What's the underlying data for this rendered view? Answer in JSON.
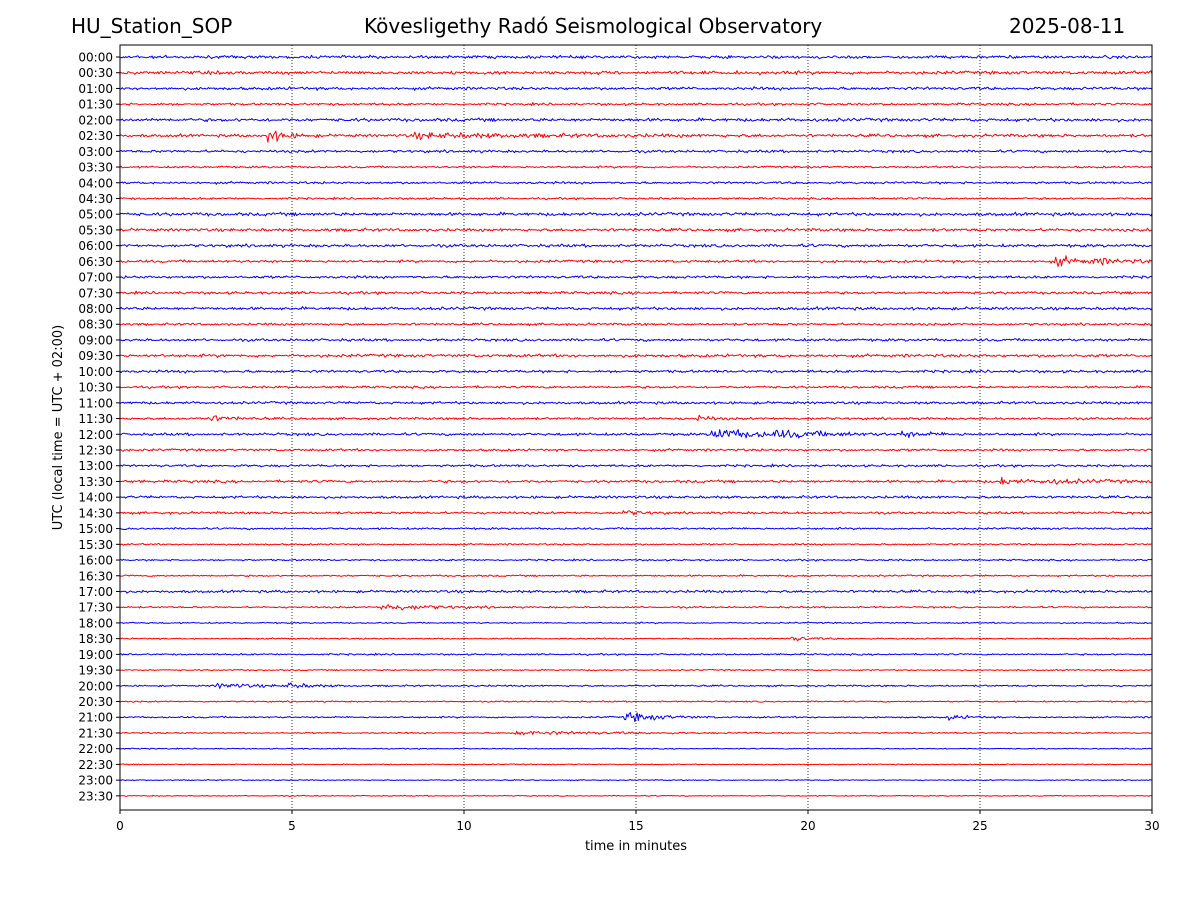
{
  "header": {
    "station": "HU_Station_SOP",
    "observatory": "Köveslig­ethy Radó Seismological Observatory",
    "date": "2025-08-11"
  },
  "chart_data": {
    "type": "line",
    "title": "Köveslig­ethy Radó Seismological Observatory",
    "xlabel": "time in minutes",
    "ylabel": "UTC (local time = UTC + 02:00)",
    "xlim": [
      0,
      30
    ],
    "xticks": [
      0,
      5,
      10,
      15,
      20,
      25,
      30
    ],
    "x_grid": "dotted vertical at x ticks",
    "row_labels": [
      "00:00",
      "00:30",
      "01:00",
      "01:30",
      "02:00",
      "02:30",
      "03:00",
      "03:30",
      "04:00",
      "04:30",
      "05:00",
      "05:30",
      "06:00",
      "06:30",
      "07:00",
      "07:30",
      "08:00",
      "08:30",
      "09:00",
      "09:30",
      "10:00",
      "10:30",
      "11:00",
      "11:30",
      "12:00",
      "12:30",
      "13:00",
      "13:30",
      "14:00",
      "14:30",
      "15:00",
      "15:30",
      "16:00",
      "16:30",
      "17:00",
      "17:30",
      "18:00",
      "18:30",
      "19:00",
      "19:30",
      "20:00",
      "20:30",
      "21:00",
      "21:30",
      "22:00",
      "22:30",
      "23:00",
      "23:30"
    ],
    "colors": [
      "#0000ff",
      "#ff0000"
    ],
    "row_noise": [
      0.9,
      1.0,
      0.9,
      0.7,
      1.0,
      0.9,
      0.8,
      0.6,
      0.7,
      0.6,
      1.0,
      0.9,
      0.9,
      0.8,
      0.8,
      0.8,
      0.9,
      0.7,
      0.8,
      0.9,
      0.8,
      0.7,
      0.8,
      0.7,
      0.8,
      0.7,
      0.7,
      0.8,
      0.8,
      0.7,
      0.6,
      0.5,
      0.5,
      0.5,
      0.8,
      0.5,
      0.4,
      0.4,
      0.5,
      0.4,
      0.5,
      0.4,
      0.5,
      0.4,
      0.3,
      0.3,
      0.3,
      0.3
    ],
    "events": [
      {
        "row": "02:30",
        "t": 4.3,
        "amp": 4.0,
        "dur": 0.5
      },
      {
        "row": "02:30",
        "t": 8.5,
        "amp": 1.4,
        "dur": 3.5
      },
      {
        "row": "06:30",
        "t": 27.2,
        "amp": 3.2,
        "dur": 0.6
      },
      {
        "row": "06:30",
        "t": 28.3,
        "amp": 1.3,
        "dur": 1.5
      },
      {
        "row": "11:30",
        "t": 2.6,
        "amp": 1.8,
        "dur": 0.6
      },
      {
        "row": "11:30",
        "t": 16.8,
        "amp": 2.2,
        "dur": 0.3
      },
      {
        "row": "12:00",
        "t": 17.2,
        "amp": 3.6,
        "dur": 1.4
      },
      {
        "row": "12:00",
        "t": 19.0,
        "amp": 1.4,
        "dur": 2.0
      },
      {
        "row": "12:00",
        "t": 22.7,
        "amp": 1.5,
        "dur": 0.7
      },
      {
        "row": "13:30",
        "t": 25.6,
        "amp": 2.2,
        "dur": 0.5
      },
      {
        "row": "13:30",
        "t": 26.8,
        "amp": 1.3,
        "dur": 1.5
      },
      {
        "row": "14:30",
        "t": 14.6,
        "amp": 1.6,
        "dur": 0.5
      },
      {
        "row": "17:30",
        "t": 7.6,
        "amp": 2.4,
        "dur": 1.3
      },
      {
        "row": "18:30",
        "t": 19.5,
        "amp": 1.6,
        "dur": 0.5
      },
      {
        "row": "20:00",
        "t": 2.8,
        "amp": 1.6,
        "dur": 1.0
      },
      {
        "row": "20:00",
        "t": 4.9,
        "amp": 1.6,
        "dur": 0.7
      },
      {
        "row": "21:00",
        "t": 14.7,
        "amp": 3.0,
        "dur": 0.9
      },
      {
        "row": "21:00",
        "t": 24.1,
        "amp": 1.5,
        "dur": 0.5
      },
      {
        "row": "21:30",
        "t": 11.5,
        "amp": 1.2,
        "dur": 2.5
      }
    ]
  }
}
